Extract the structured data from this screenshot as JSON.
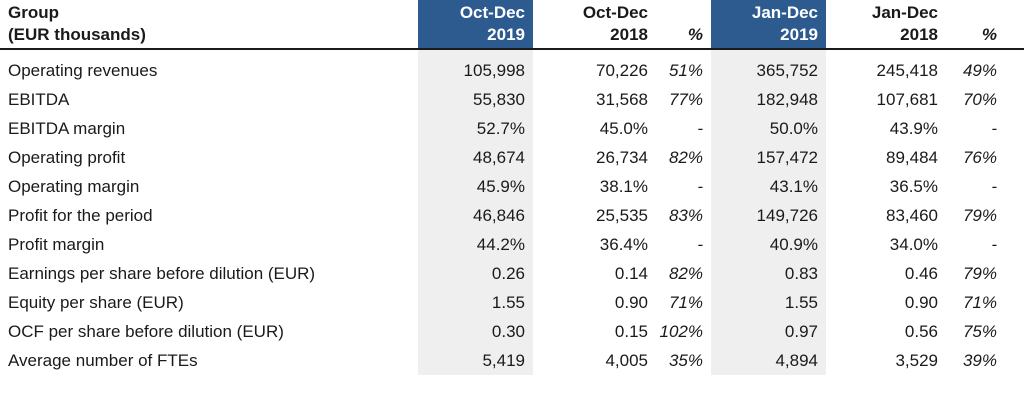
{
  "table": {
    "title_line1": "Group",
    "title_line2": "(EUR thousands)",
    "colors": {
      "header_highlight": "#2d5b90",
      "header_highlight_text": "#ffffff",
      "column_shade": "#efefef",
      "text": "#1a1a1a"
    },
    "header": {
      "columns": [
        {
          "line1": "Oct-Dec",
          "line2": "2019",
          "highlighted": true
        },
        {
          "line1": "Oct-Dec",
          "line2": "2018",
          "highlighted": false
        },
        {
          "line1": "",
          "line2": "%",
          "highlighted": false
        },
        {
          "line1": "Jan-Dec",
          "line2": "2019",
          "highlighted": true
        },
        {
          "line1": "Jan-Dec",
          "line2": "2018",
          "highlighted": false
        },
        {
          "line1": "",
          "line2": "%",
          "highlighted": false
        }
      ]
    },
    "rows": [
      {
        "label": "Operating revenues",
        "values": [
          "105,998",
          "70,226",
          "51%",
          "365,752",
          "245,418",
          "49%"
        ]
      },
      {
        "label": "EBITDA",
        "values": [
          "55,830",
          "31,568",
          "77%",
          "182,948",
          "107,681",
          "70%"
        ]
      },
      {
        "label": "EBITDA margin",
        "values": [
          "52.7%",
          "45.0%",
          "-",
          "50.0%",
          "43.9%",
          "-"
        ]
      },
      {
        "label": "Operating profit",
        "values": [
          "48,674",
          "26,734",
          "82%",
          "157,472",
          "89,484",
          "76%"
        ]
      },
      {
        "label": "Operating margin",
        "values": [
          "45.9%",
          "38.1%",
          "-",
          "43.1%",
          "36.5%",
          "-"
        ]
      },
      {
        "label": "Profit for the period",
        "values": [
          "46,846",
          "25,535",
          "83%",
          "149,726",
          "83,460",
          "79%"
        ]
      },
      {
        "label": "Profit margin",
        "values": [
          "44.2%",
          "36.4%",
          "-",
          "40.9%",
          "34.0%",
          "-"
        ]
      },
      {
        "label": "Earnings per share before dilution (EUR)",
        "values": [
          "0.26",
          "0.14",
          "82%",
          "0.83",
          "0.46",
          "79%"
        ]
      },
      {
        "label": "Equity per share (EUR)",
        "values": [
          "1.55",
          "0.90",
          "71%",
          "1.55",
          "0.90",
          "71%"
        ]
      },
      {
        "label": "OCF per share before dilution (EUR)",
        "values": [
          "0.30",
          "0.15",
          "102%",
          "0.97",
          "0.56",
          "75%"
        ]
      },
      {
        "label": "Average number of FTEs",
        "values": [
          "5,419",
          "4,005",
          "35%",
          "4,894",
          "3,529",
          "39%"
        ]
      }
    ]
  },
  "chart_data": {
    "type": "table",
    "title": "Group (EUR thousands)",
    "columns": [
      "Group (EUR thousands)",
      "Oct-Dec 2019",
      "Oct-Dec 2018",
      "%",
      "Jan-Dec 2019",
      "Jan-Dec 2018",
      "%"
    ],
    "rows": [
      [
        "Operating revenues",
        "105,998",
        "70,226",
        "51%",
        "365,752",
        "245,418",
        "49%"
      ],
      [
        "EBITDA",
        "55,830",
        "31,568",
        "77%",
        "182,948",
        "107,681",
        "70%"
      ],
      [
        "EBITDA margin",
        "52.7%",
        "45.0%",
        "-",
        "50.0%",
        "43.9%",
        "-"
      ],
      [
        "Operating profit",
        "48,674",
        "26,734",
        "82%",
        "157,472",
        "89,484",
        "76%"
      ],
      [
        "Operating margin",
        "45.9%",
        "38.1%",
        "-",
        "43.1%",
        "36.5%",
        "-"
      ],
      [
        "Profit for the period",
        "46,846",
        "25,535",
        "83%",
        "149,726",
        "83,460",
        "79%"
      ],
      [
        "Profit margin",
        "44.2%",
        "36.4%",
        "-",
        "40.9%",
        "34.0%",
        "-"
      ],
      [
        "Earnings per share before dilution (EUR)",
        "0.26",
        "0.14",
        "82%",
        "0.83",
        "0.46",
        "79%"
      ],
      [
        "Equity per share (EUR)",
        "1.55",
        "0.90",
        "71%",
        "1.55",
        "0.90",
        "71%"
      ],
      [
        "OCF per share before dilution (EUR)",
        "0.30",
        "0.15",
        "102%",
        "0.97",
        "0.56",
        "75%"
      ],
      [
        "Average number of FTEs",
        "5,419",
        "4,005",
        "35%",
        "4,894",
        "3,529",
        "39%"
      ]
    ],
    "layout_hints": {
      "highlighted_columns": [
        "Oct-Dec 2019",
        "Jan-Dec 2019"
      ],
      "highlight_color": "#2d5b90",
      "shaded_body_columns": [
        "Oct-Dec 2019",
        "Jan-Dec 2019"
      ],
      "percent_columns_italic": true,
      "value_alignment": "right"
    }
  }
}
